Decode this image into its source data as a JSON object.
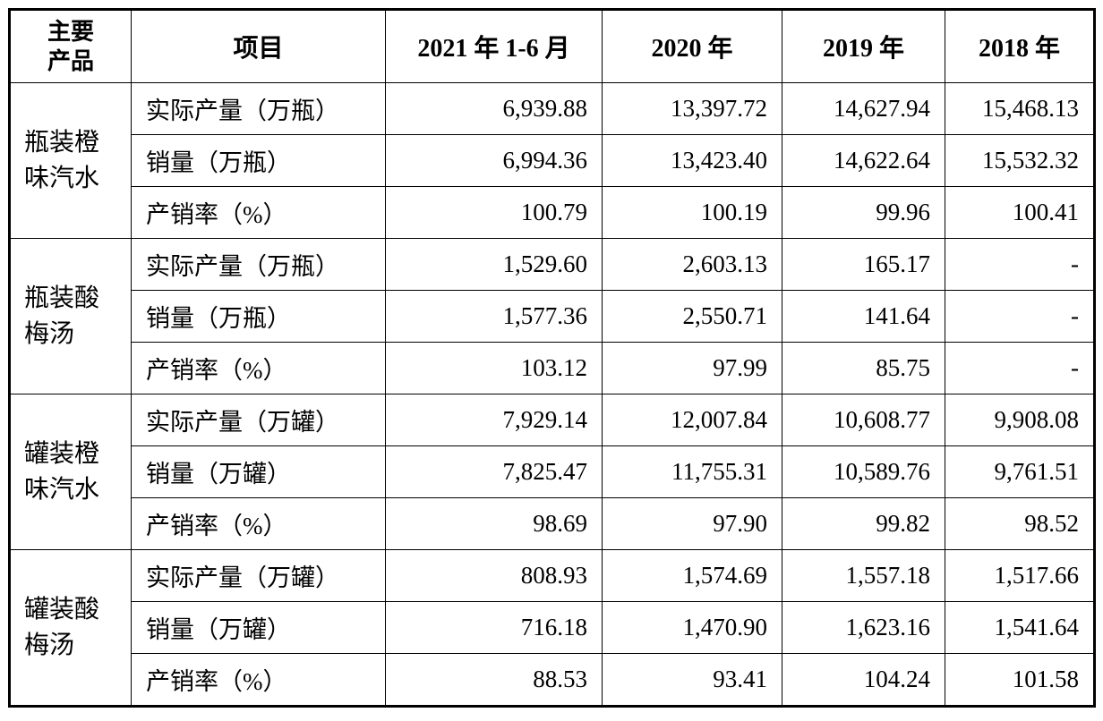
{
  "table": {
    "headers": {
      "product_line1": "主要",
      "product_line2": "产品",
      "item": "项目",
      "periods": [
        "2021 年 1-6 月",
        "2020 年",
        "2019 年",
        "2018 年"
      ]
    },
    "groups": [
      {
        "product_line1": "瓶装橙",
        "product_line2": "味汽水",
        "rows": [
          {
            "item": "实际产量（万瓶）",
            "values": [
              "6,939.88",
              "13,397.72",
              "14,627.94",
              "15,468.13"
            ]
          },
          {
            "item": "销量（万瓶）",
            "values": [
              "6,994.36",
              "13,423.40",
              "14,622.64",
              "15,532.32"
            ]
          },
          {
            "item": "产销率（%）",
            "values": [
              "100.79",
              "100.19",
              "99.96",
              "100.41"
            ]
          }
        ]
      },
      {
        "product_line1": "瓶装酸",
        "product_line2": "梅汤",
        "rows": [
          {
            "item": "实际产量（万瓶）",
            "values": [
              "1,529.60",
              "2,603.13",
              "165.17",
              "-"
            ]
          },
          {
            "item": "销量（万瓶）",
            "values": [
              "1,577.36",
              "2,550.71",
              "141.64",
              "-"
            ]
          },
          {
            "item": "产销率（%）",
            "values": [
              "103.12",
              "97.99",
              "85.75",
              "-"
            ]
          }
        ]
      },
      {
        "product_line1": "罐装橙",
        "product_line2": "味汽水",
        "rows": [
          {
            "item": "实际产量（万罐）",
            "values": [
              "7,929.14",
              "12,007.84",
              "10,608.77",
              "9,908.08"
            ]
          },
          {
            "item": "销量（万罐）",
            "values": [
              "7,825.47",
              "11,755.31",
              "10,589.76",
              "9,761.51"
            ]
          },
          {
            "item": "产销率（%）",
            "values": [
              "98.69",
              "97.90",
              "99.82",
              "98.52"
            ]
          }
        ]
      },
      {
        "product_line1": "罐装酸",
        "product_line2": "梅汤",
        "rows": [
          {
            "item": "实际产量（万罐）",
            "values": [
              "808.93",
              "1,574.69",
              "1,557.18",
              "1,517.66"
            ]
          },
          {
            "item": "销量（万罐）",
            "values": [
              "716.18",
              "1,470.90",
              "1,623.16",
              "1,541.64"
            ]
          },
          {
            "item": "产销率（%）",
            "values": [
              "88.53",
              "93.41",
              "104.24",
              "101.58"
            ]
          }
        ]
      }
    ]
  }
}
